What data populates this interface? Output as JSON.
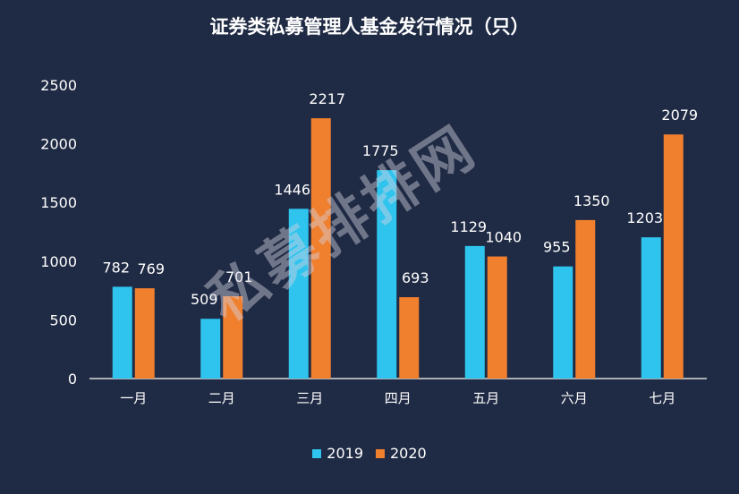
{
  "colors": {
    "background": "#1f2a44",
    "series_2019": "#2ec4ee",
    "series_2020": "#f07f2e"
  },
  "watermark": "私募排排网",
  "chart_data": {
    "type": "bar",
    "title": "证券类私募管理人基金发行情况（只）",
    "categories": [
      "一月",
      "二月",
      "三月",
      "四月",
      "五月",
      "六月",
      "七月"
    ],
    "series": [
      {
        "name": "2019",
        "values": [
          782,
          509,
          1446,
          1775,
          1129,
          955,
          1203
        ]
      },
      {
        "name": "2020",
        "values": [
          769,
          701,
          2217,
          693,
          1040,
          1350,
          2079
        ]
      }
    ],
    "yticks": [
      "0",
      "500",
      "1000",
      "1500",
      "2000",
      "2500"
    ],
    "ylim": [
      0,
      2500
    ],
    "grid": false,
    "legend_position": "bottom"
  }
}
